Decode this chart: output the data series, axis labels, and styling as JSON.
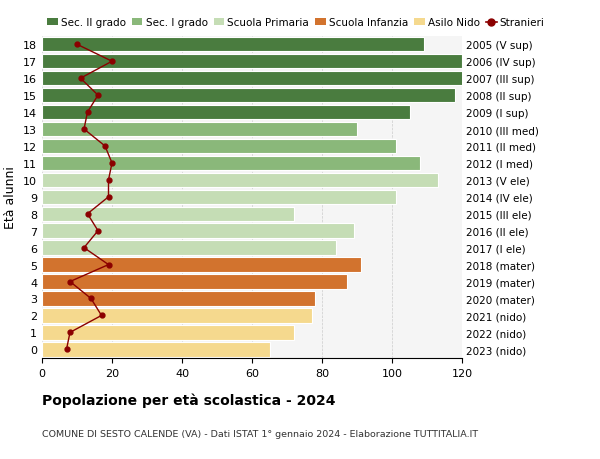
{
  "ages": [
    0,
    1,
    2,
    3,
    4,
    5,
    6,
    7,
    8,
    9,
    10,
    11,
    12,
    13,
    14,
    15,
    16,
    17,
    18
  ],
  "bar_values": [
    65,
    72,
    77,
    78,
    87,
    91,
    84,
    89,
    72,
    101,
    113,
    108,
    101,
    90,
    105,
    118,
    122,
    120,
    109
  ],
  "stranieri": [
    7,
    8,
    17,
    14,
    8,
    19,
    12,
    16,
    13,
    19,
    19,
    20,
    18,
    12,
    13,
    16,
    11,
    20,
    10
  ],
  "right_labels": [
    "2023 (nido)",
    "2022 (nido)",
    "2021 (nido)",
    "2020 (mater)",
    "2019 (mater)",
    "2018 (mater)",
    "2017 (I ele)",
    "2016 (II ele)",
    "2015 (III ele)",
    "2014 (IV ele)",
    "2013 (V ele)",
    "2012 (I med)",
    "2011 (II med)",
    "2010 (III med)",
    "2009 (I sup)",
    "2008 (II sup)",
    "2007 (III sup)",
    "2006 (IV sup)",
    "2005 (V sup)"
  ],
  "bar_colors": [
    "#f5d98e",
    "#f5d98e",
    "#f5d98e",
    "#d2732e",
    "#d2732e",
    "#d2732e",
    "#c5ddb5",
    "#c5ddb5",
    "#c5ddb5",
    "#c5ddb5",
    "#c5ddb5",
    "#8ab87a",
    "#8ab87a",
    "#8ab87a",
    "#4a7c3f",
    "#4a7c3f",
    "#4a7c3f",
    "#4a7c3f",
    "#4a7c3f"
  ],
  "stranieri_color": "#8b0000",
  "title": "Popolazione per età scolastica - 2024",
  "subtitle": "COMUNE DI SESTO CALENDE (VA) - Dati ISTAT 1° gennaio 2024 - Elaborazione TUTTITALIA.IT",
  "ylabel": "Età alunni",
  "xticks": [
    0,
    20,
    40,
    60,
    80,
    100,
    120
  ],
  "legend_labels": [
    "Sec. II grado",
    "Sec. I grado",
    "Scuola Primaria",
    "Scuola Infanzia",
    "Asilo Nido",
    "Stranieri"
  ],
  "legend_colors": [
    "#4a7c3f",
    "#8ab87a",
    "#c5ddb5",
    "#d2732e",
    "#f5d98e",
    "#8b0000"
  ],
  "plot_bg": "#f5f5f5"
}
